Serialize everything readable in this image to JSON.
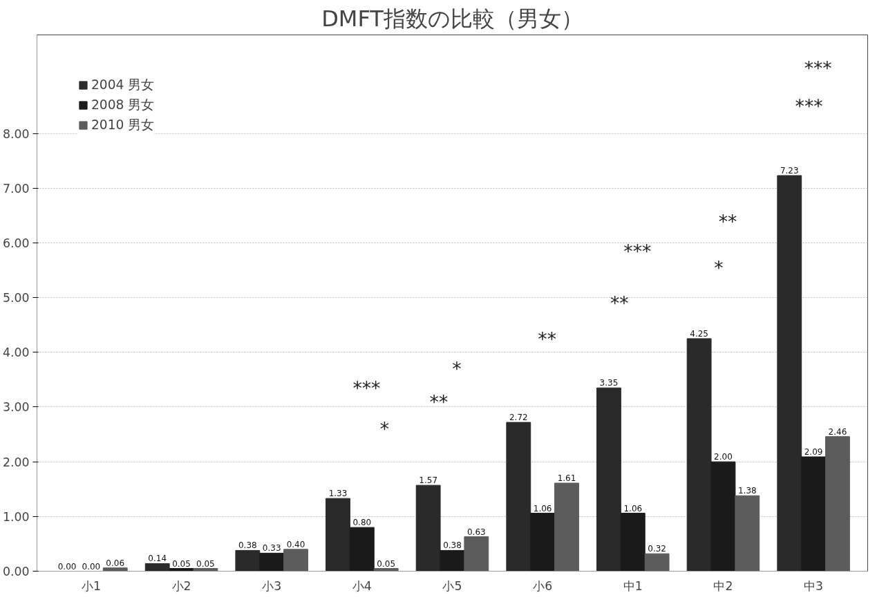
{
  "chart_data": {
    "type": "bar",
    "title": "DMFT指数の比較（男女）",
    "categories": [
      "小1",
      "小2",
      "小3",
      "小4",
      "小5",
      "小6",
      "中1",
      "中2",
      "中3"
    ],
    "series": [
      {
        "name": "2004 男女",
        "color": "#2a2a2a",
        "values": [
          0.0,
          0.14,
          0.38,
          1.33,
          1.57,
          2.72,
          3.35,
          4.25,
          7.23
        ],
        "value_labels": [
          "0.00",
          "0.14",
          "0.38",
          "1.33",
          "1.57",
          "2.72",
          "3.35",
          "4.25",
          "7.23"
        ]
      },
      {
        "name": "2008 男女",
        "color": "#1a1a1a",
        "values": [
          0.0,
          0.05,
          0.33,
          0.8,
          0.38,
          1.06,
          1.06,
          2.0,
          2.09
        ],
        "value_labels": [
          "0.00",
          "0.05",
          "0.33",
          "0.80",
          "0.38",
          "1.06",
          "1.06",
          "2.00",
          "2.09"
        ]
      },
      {
        "name": "2010 男女",
        "color": "#5c5c5c",
        "values": [
          0.06,
          0.05,
          0.4,
          0.05,
          0.63,
          1.61,
          0.32,
          1.38,
          2.46
        ],
        "value_labels": [
          "0.06",
          "0.05",
          "0.40",
          "0.05",
          "0.63",
          "1.61",
          "0.32",
          "1.38",
          "2.46"
        ]
      }
    ],
    "ylim": [
      0,
      9.8
    ],
    "yticks": [
      {
        "value": 0,
        "label": "0.00"
      },
      {
        "value": 1,
        "label": "1.00"
      },
      {
        "value": 2,
        "label": "2.00"
      },
      {
        "value": 3,
        "label": "3.00"
      },
      {
        "value": 4,
        "label": "4.00"
      },
      {
        "value": 5,
        "label": "5.00"
      },
      {
        "value": 6,
        "label": "6.00"
      },
      {
        "value": 7,
        "label": "7.00"
      },
      {
        "value": 8,
        "label": "8.00"
      }
    ],
    "grid": "y",
    "legend": "top left",
    "annotations": [
      "***",
      "*",
      "*",
      "**",
      "**",
      "***",
      "**",
      "**",
      "*",
      "***",
      "***"
    ]
  }
}
